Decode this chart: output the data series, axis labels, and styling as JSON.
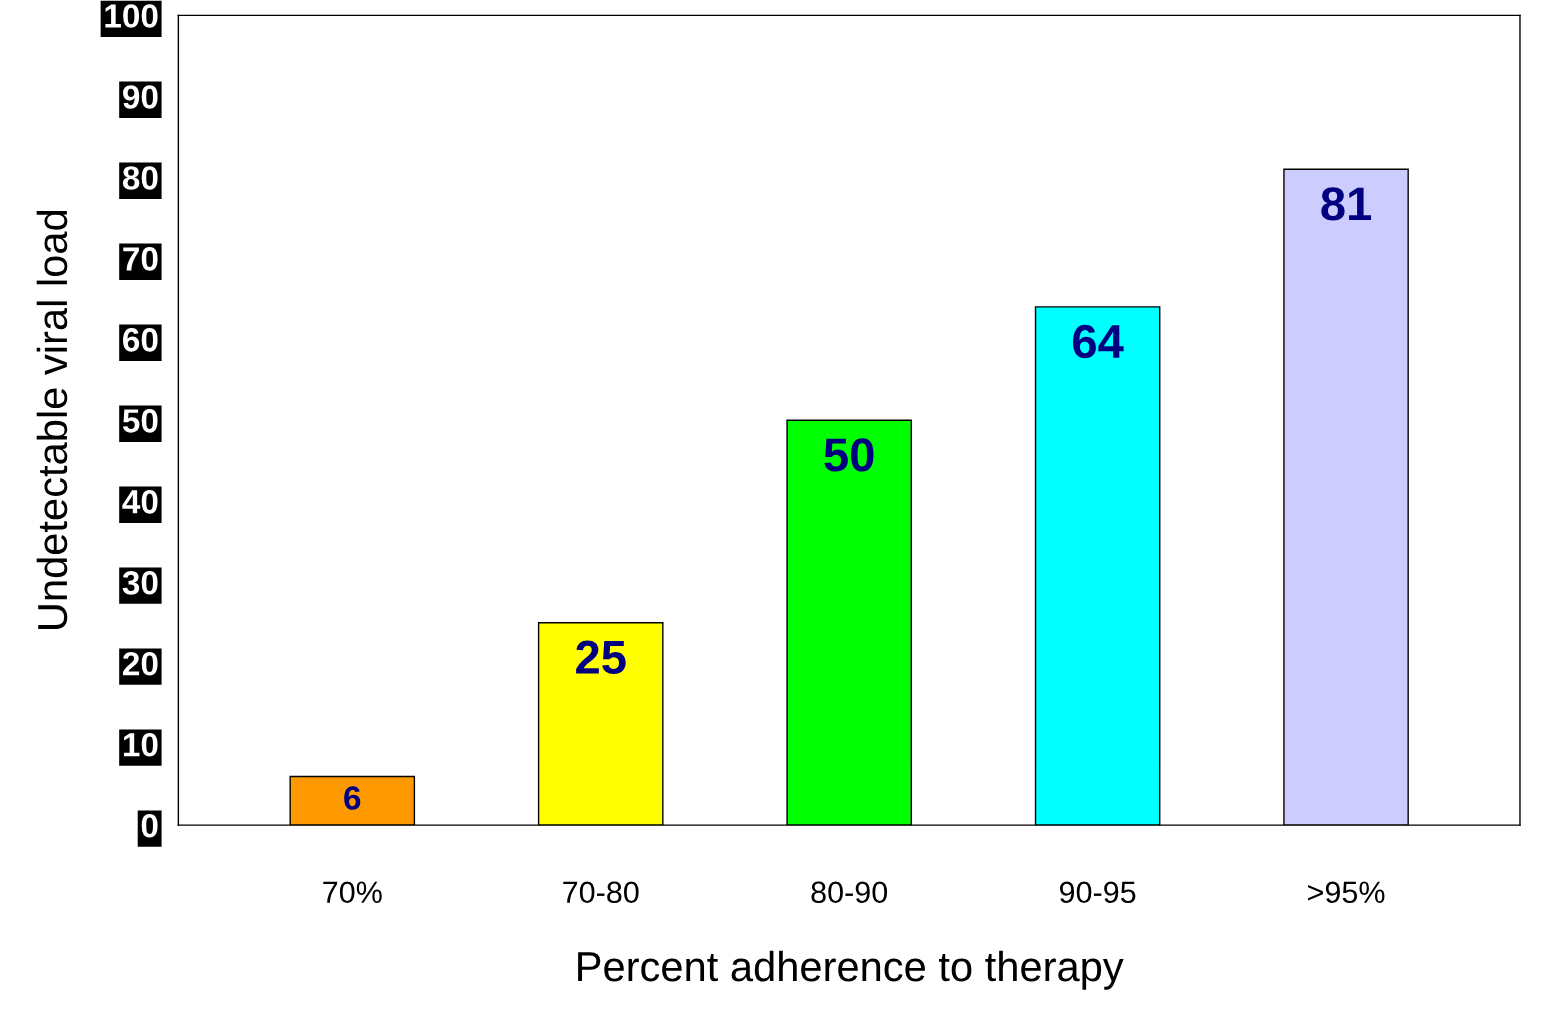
{
  "chart_data": {
    "type": "bar",
    "xlabel": "Percent adherence to therapy",
    "ylabel": "Undetectable viral load",
    "categories": [
      "70%",
      "70-80",
      "80-90",
      "90-95",
      ">95%"
    ],
    "values": [
      6,
      25,
      50,
      64,
      81
    ],
    "colors": [
      "#ff9900",
      "#ffff00",
      "#00ff00",
      "#00ffff",
      "#ccccff"
    ],
    "ylim": [
      0,
      100
    ],
    "yticks": [
      0,
      10,
      20,
      30,
      40,
      50,
      60,
      70,
      80,
      90,
      100
    ],
    "data_labels": true,
    "grid": false,
    "legend": false
  }
}
